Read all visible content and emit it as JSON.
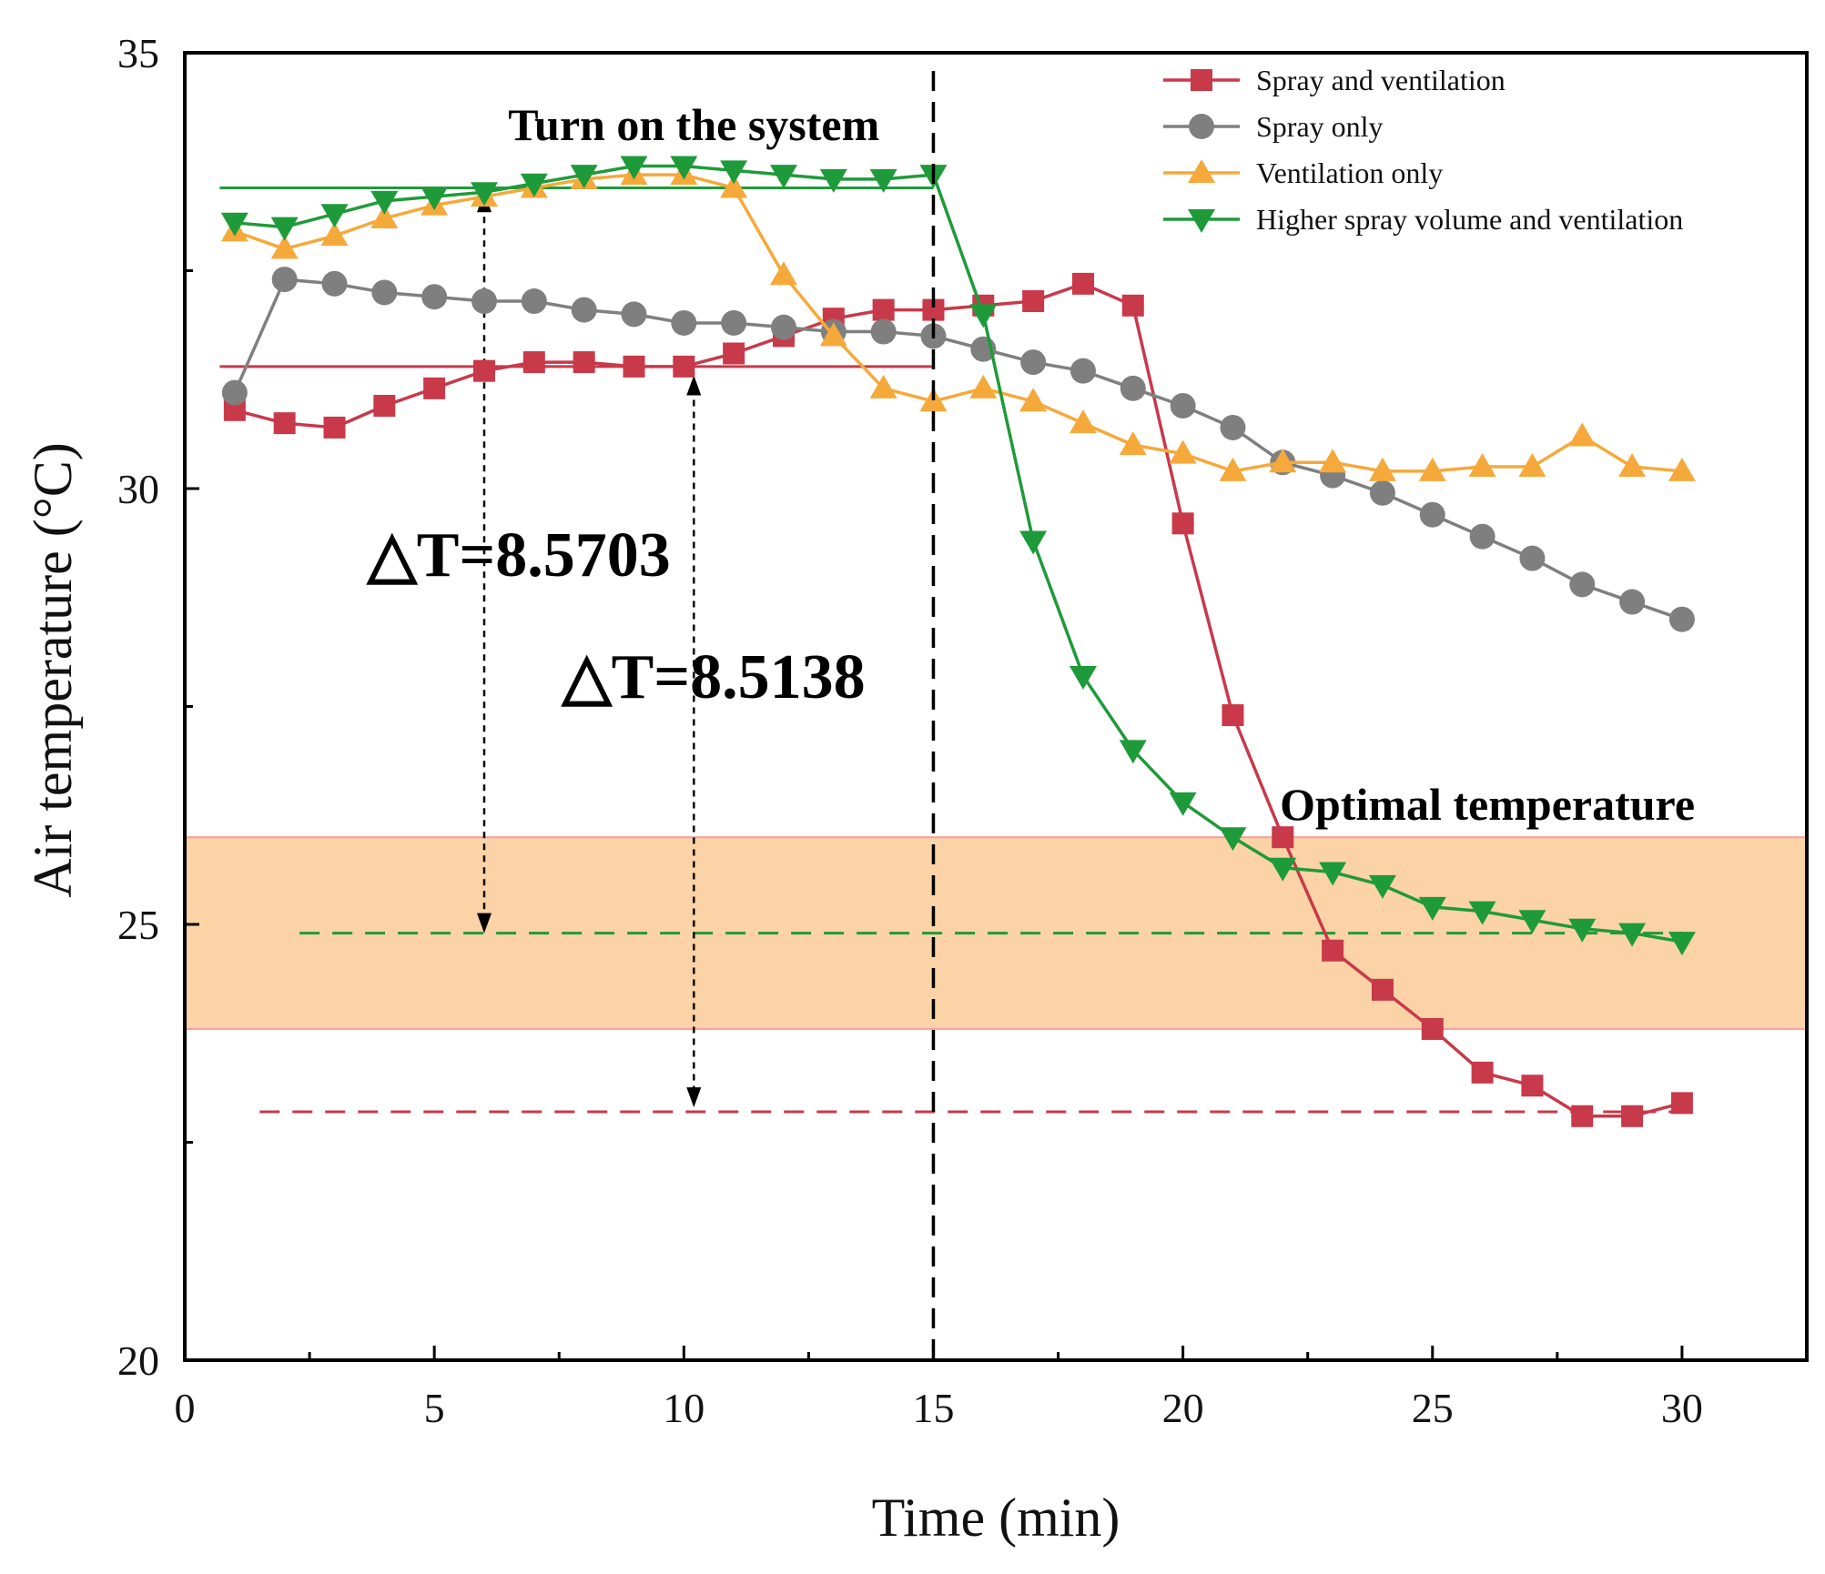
{
  "chart_data": {
    "type": "line",
    "title": "",
    "xlabel": "Time (min)",
    "ylabel": "Air temperature (°C)",
    "xlim": [
      0,
      32.5
    ],
    "ylim": [
      20,
      35
    ],
    "x_ticks": [
      0,
      5,
      10,
      15,
      20,
      25,
      30
    ],
    "x_tick_labels": [
      "0",
      "5",
      "10",
      "15",
      "20",
      "25",
      "30"
    ],
    "y_ticks": [
      20,
      25,
      30,
      35
    ],
    "y_tick_labels": [
      "20",
      "25",
      "30",
      "35"
    ],
    "x_minor_ticks": [
      2.5,
      7.5,
      12.5,
      17.5,
      22.5,
      27.5,
      32.5
    ],
    "y_minor_ticks": [
      22.5,
      27.5,
      32.5
    ],
    "legend_position": "top-right",
    "series": [
      {
        "name": "Spray and ventilation",
        "color": "#c8394a",
        "marker": "square",
        "x": [
          1,
          2,
          3,
          4,
          5,
          6,
          7,
          8,
          9,
          10,
          11,
          12,
          13,
          14,
          15,
          16,
          17,
          18,
          19,
          20,
          21,
          22,
          23,
          24,
          25,
          26,
          27,
          28,
          29,
          30
        ],
        "values": [
          30.9,
          30.75,
          30.7,
          30.95,
          31.15,
          31.35,
          31.45,
          31.45,
          31.4,
          31.4,
          31.55,
          31.75,
          31.95,
          32.05,
          32.05,
          32.1,
          32.15,
          32.35,
          32.1,
          29.6,
          27.4,
          26.0,
          24.7,
          24.25,
          23.8,
          23.3,
          23.15,
          22.8,
          22.8,
          22.95
        ]
      },
      {
        "name": "Spray only",
        "color": "#7f7f7f",
        "marker": "circle",
        "x": [
          1,
          2,
          3,
          4,
          5,
          6,
          7,
          8,
          9,
          10,
          11,
          12,
          13,
          14,
          15,
          16,
          17,
          18,
          19,
          20,
          21,
          22,
          23,
          24,
          25,
          26,
          27,
          28,
          29,
          30
        ],
        "values": [
          31.1,
          32.4,
          32.35,
          32.25,
          32.2,
          32.15,
          32.15,
          32.05,
          32.0,
          31.9,
          31.9,
          31.85,
          31.8,
          31.8,
          31.75,
          31.6,
          31.45,
          31.35,
          31.15,
          30.95,
          30.7,
          30.3,
          30.15,
          29.95,
          29.7,
          29.45,
          29.2,
          28.9,
          28.7,
          28.5
        ]
      },
      {
        "name": "Ventilation only",
        "color": "#f5a93b",
        "marker": "triangle-up",
        "x": [
          1,
          2,
          3,
          4,
          5,
          6,
          7,
          8,
          9,
          10,
          11,
          12,
          13,
          14,
          15,
          16,
          17,
          18,
          19,
          20,
          21,
          22,
          23,
          24,
          25,
          26,
          27,
          28,
          29,
          30
        ],
        "values": [
          32.95,
          32.75,
          32.9,
          33.1,
          33.25,
          33.35,
          33.45,
          33.55,
          33.6,
          33.6,
          33.45,
          32.45,
          31.75,
          31.15,
          31.0,
          31.15,
          31.0,
          30.75,
          30.5,
          30.4,
          30.2,
          30.3,
          30.3,
          30.2,
          30.2,
          30.25,
          30.25,
          30.6,
          30.25,
          30.2
        ]
      },
      {
        "name": "Higher spray volume and ventilation",
        "color": "#1f9a3a",
        "marker": "triangle-down",
        "x": [
          1,
          2,
          3,
          4,
          5,
          6,
          7,
          8,
          9,
          10,
          11,
          12,
          13,
          14,
          15,
          16,
          17,
          18,
          19,
          20,
          21,
          22,
          23,
          24,
          25,
          26,
          27,
          28,
          29,
          30
        ],
        "values": [
          33.05,
          33.0,
          33.15,
          33.3,
          33.35,
          33.4,
          33.5,
          33.6,
          33.7,
          33.7,
          33.65,
          33.6,
          33.55,
          33.55,
          33.6,
          32.0,
          29.4,
          27.85,
          27.0,
          26.4,
          26.0,
          25.65,
          25.6,
          25.45,
          25.2,
          25.15,
          25.05,
          24.95,
          24.9,
          24.8
        ]
      }
    ],
    "reference_lines": [
      {
        "series": "Spray and ventilation",
        "style": "solid",
        "y": 31.4,
        "x_range": [
          0.7,
          15
        ]
      },
      {
        "series": "Higher spray volume and ventilation",
        "style": "solid",
        "y": 33.45,
        "x_range": [
          0.7,
          15
        ]
      },
      {
        "series": "Spray and ventilation",
        "style": "dashed",
        "y": 22.85,
        "x_range": [
          1.5,
          30
        ]
      },
      {
        "series": "Higher spray volume and ventilation",
        "style": "dashed",
        "y": 24.9,
        "x_range": [
          2.3,
          30
        ]
      }
    ],
    "system_on_line": {
      "x": 15,
      "style": "dashed",
      "color": "#000000"
    },
    "optimal_band": {
      "y_range": [
        23.8,
        26.0
      ],
      "color": "#fbd3a6",
      "edge_color": "#f5a0a0"
    },
    "annotations": [
      {
        "text": "Turn on the system",
        "x": 10.2,
        "y": 34.0
      },
      {
        "text": "Optimal temperature",
        "x": 26.1,
        "y": 26.2
      },
      {
        "text": "△T=8.5703",
        "x": 6.7,
        "y": 29.0,
        "arrow_x": 6.0,
        "arrow_from": 33.4,
        "arrow_to": 24.9
      },
      {
        "text": "△T=8.5138",
        "x": 10.6,
        "y": 27.6,
        "arrow_x": 10.2,
        "arrow_from": 31.3,
        "arrow_to": 22.9
      }
    ]
  }
}
